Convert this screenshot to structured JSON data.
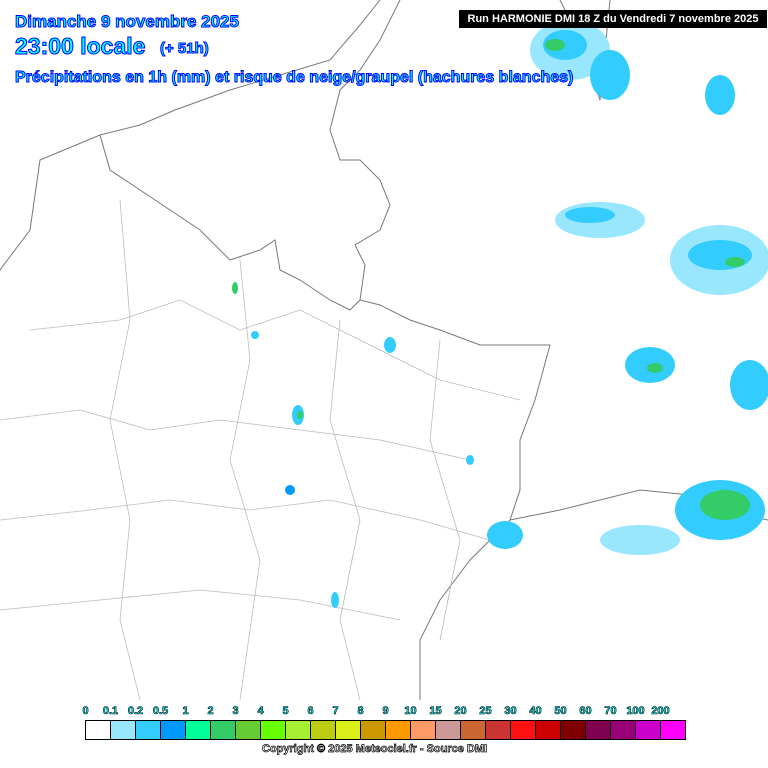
{
  "header": {
    "date": "Dimanche 9 novembre 2025",
    "time": "23:00 locale",
    "offset": "(+ 51h)",
    "subtitle": "Précipitations en 1h (mm) et risque de neige/graupel (hachures blanches)",
    "run": "Run HARMONIE DMI 18 Z du Vendredi 7 novembre 2025"
  },
  "legend": {
    "labels": [
      "0",
      "0.1",
      "0.2",
      "0.5",
      "1",
      "2",
      "3",
      "4",
      "5",
      "6",
      "7",
      "8",
      "9",
      "10",
      "15",
      "20",
      "25",
      "30",
      "40",
      "50",
      "60",
      "70",
      "100",
      "200"
    ],
    "colors": [
      "#ffffff",
      "#99e6ff",
      "#33ccff",
      "#0099ff",
      "#00ff99",
      "#33cc66",
      "#66cc33",
      "#66ff00",
      "#a6ef33",
      "#bbcc11",
      "#d9ef17",
      "#cc9900",
      "#ff9900",
      "#ff9966",
      "#cc9999",
      "#cc6633",
      "#cc3333",
      "#ff1111",
      "#cc0000",
      "#800000",
      "#800050",
      "#990077",
      "#cc00cc",
      "#ff00ff"
    ]
  },
  "copyright": "Copyright © 2025 Meteociel.fr - Source DMI"
}
